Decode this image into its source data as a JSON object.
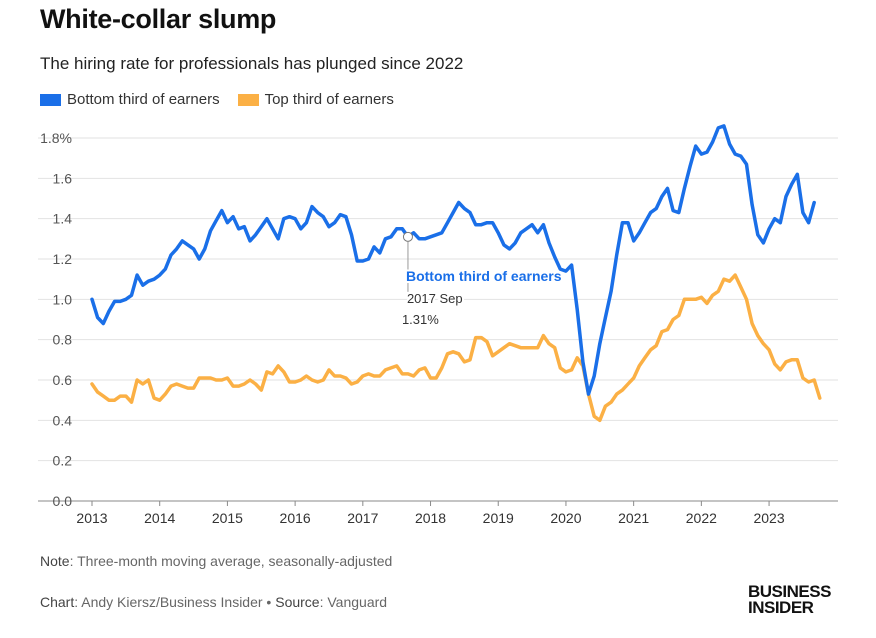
{
  "header": {
    "title": "White-collar slump",
    "subtitle": "The hiring rate for professionals has plunged since 2022"
  },
  "legend": [
    {
      "label": "Bottom third of earners",
      "color": "#1a6fe8"
    },
    {
      "label": "Top third of earners",
      "color": "#fbb045"
    }
  ],
  "tooltip": {
    "series": "Bottom third of earners",
    "date": "2017 Sep",
    "value": "1.31%"
  },
  "footer": {
    "note_label": "Note",
    "note_text": ": Three-month moving average, seasonally-adjusted",
    "chart_label": "Chart",
    "chart_text": ": Andy Kiersz/Business Insider",
    "bullet": " • ",
    "source_label": "Source",
    "source_text": ": Vanguard",
    "logo_line1": "BUSINESS",
    "logo_line2": "INSIDER"
  },
  "chart_data": {
    "type": "line",
    "title": "White-collar slump",
    "subtitle": "The hiring rate for professionals has plunged since 2022",
    "xlabel": "",
    "ylabel": "",
    "x_start": "2013-01",
    "x_ticks": [
      "2013",
      "2014",
      "2015",
      "2016",
      "2017",
      "2018",
      "2019",
      "2020",
      "2021",
      "2022",
      "2023"
    ],
    "y_ticks": [
      "0.0",
      "0.2",
      "0.4",
      "0.6",
      "0.8",
      "1.0",
      "1.2",
      "1.4",
      "1.6",
      "1.8%"
    ],
    "ylim": [
      0,
      1.8
    ],
    "grid": true,
    "legend": "top-left",
    "series": [
      {
        "name": "Bottom third of earners",
        "color": "#1a6fe8",
        "values": [
          1.0,
          0.91,
          0.88,
          0.94,
          0.99,
          0.99,
          1.0,
          1.02,
          1.12,
          1.07,
          1.09,
          1.1,
          1.12,
          1.15,
          1.22,
          1.25,
          1.29,
          1.27,
          1.25,
          1.2,
          1.25,
          1.34,
          1.39,
          1.44,
          1.38,
          1.41,
          1.35,
          1.36,
          1.29,
          1.32,
          1.36,
          1.4,
          1.35,
          1.3,
          1.4,
          1.41,
          1.4,
          1.35,
          1.38,
          1.46,
          1.43,
          1.41,
          1.36,
          1.38,
          1.42,
          1.41,
          1.32,
          1.19,
          1.19,
          1.2,
          1.26,
          1.23,
          1.3,
          1.31,
          1.35,
          1.35,
          1.31,
          1.33,
          1.3,
          1.3,
          1.31,
          1.32,
          1.33,
          1.38,
          1.43,
          1.48,
          1.45,
          1.43,
          1.37,
          1.37,
          1.38,
          1.38,
          1.33,
          1.27,
          1.25,
          1.28,
          1.33,
          1.35,
          1.37,
          1.33,
          1.37,
          1.28,
          1.21,
          1.15,
          1.14,
          1.17,
          0.95,
          0.69,
          0.53,
          0.62,
          0.78,
          0.91,
          1.04,
          1.22,
          1.38,
          1.38,
          1.29,
          1.33,
          1.38,
          1.43,
          1.45,
          1.51,
          1.55,
          1.44,
          1.43,
          1.55,
          1.66,
          1.76,
          1.72,
          1.73,
          1.78,
          1.85,
          1.86,
          1.77,
          1.72,
          1.71,
          1.67,
          1.47,
          1.32,
          1.28,
          1.35,
          1.4,
          1.38,
          1.51,
          1.57,
          1.62,
          1.43,
          1.38,
          1.48
        ]
      },
      {
        "name": "Top third of earners",
        "color": "#fbb045",
        "values": [
          0.58,
          0.54,
          0.52,
          0.5,
          0.5,
          0.52,
          0.52,
          0.49,
          0.6,
          0.58,
          0.6,
          0.51,
          0.5,
          0.53,
          0.57,
          0.58,
          0.57,
          0.56,
          0.56,
          0.61,
          0.61,
          0.61,
          0.6,
          0.6,
          0.61,
          0.57,
          0.57,
          0.58,
          0.6,
          0.58,
          0.55,
          0.64,
          0.63,
          0.67,
          0.64,
          0.59,
          0.59,
          0.6,
          0.62,
          0.6,
          0.59,
          0.6,
          0.65,
          0.62,
          0.62,
          0.61,
          0.58,
          0.59,
          0.62,
          0.63,
          0.62,
          0.62,
          0.65,
          0.66,
          0.67,
          0.63,
          0.63,
          0.62,
          0.65,
          0.66,
          0.61,
          0.61,
          0.66,
          0.73,
          0.74,
          0.73,
          0.69,
          0.7,
          0.81,
          0.81,
          0.79,
          0.72,
          0.74,
          0.76,
          0.78,
          0.77,
          0.76,
          0.76,
          0.76,
          0.76,
          0.82,
          0.78,
          0.76,
          0.66,
          0.64,
          0.65,
          0.71,
          0.67,
          0.53,
          0.42,
          0.4,
          0.47,
          0.49,
          0.53,
          0.55,
          0.58,
          0.61,
          0.67,
          0.71,
          0.75,
          0.77,
          0.84,
          0.85,
          0.9,
          0.92,
          1.0,
          1.0,
          1.0,
          1.01,
          0.98,
          1.02,
          1.04,
          1.1,
          1.09,
          1.12,
          1.06,
          1.0,
          0.88,
          0.82,
          0.78,
          0.75,
          0.68,
          0.65,
          0.69,
          0.7,
          0.7,
          0.61,
          0.59,
          0.6,
          0.51
        ]
      }
    ]
  }
}
